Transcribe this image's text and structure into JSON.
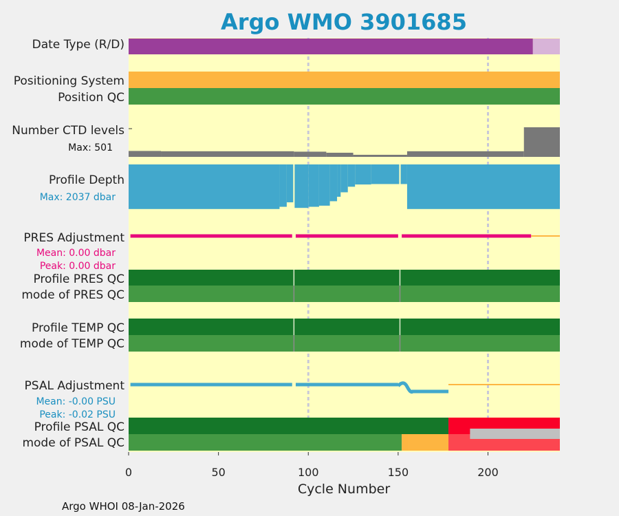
{
  "chart_data": {
    "type": "bar",
    "title": "Argo WMO 3901685",
    "xlabel": "Cycle Number",
    "xlim": [
      0,
      240
    ],
    "xticks": [
      0,
      50,
      100,
      150,
      200
    ],
    "grid_x": [
      100,
      200
    ],
    "footer": "Argo WHOI 08-Jan-2026",
    "colors": {
      "background": "#ffffc0",
      "grid": "#c8c8d8",
      "magenta": "#9a3e9a",
      "magenta_light": "#d8b4d8",
      "orange": "#fdb541",
      "green_light": "#449944",
      "green_dark": "#157729",
      "gray": "#787878",
      "blue": "#42a8cc",
      "pink": "#e8097c",
      "red": "#fa0028",
      "red_light": "#fc4650",
      "silver": "#c0c0c0"
    },
    "rows": {
      "date_type": {
        "label": "Date Type (R/D)",
        "segments": [
          {
            "from": 0,
            "to": 225,
            "value": "R",
            "color": "#9a3e9a"
          },
          {
            "from": 225,
            "to": 240,
            "value": "D",
            "color": "#d8b4d8"
          }
        ]
      },
      "positioning_system": {
        "label": "Positioning System",
        "segments": [
          {
            "from": 0,
            "to": 240,
            "color": "#fdb541"
          }
        ]
      },
      "position_qc": {
        "label": "Position QC",
        "segments": [
          {
            "from": 0,
            "to": 240,
            "color": "#449944"
          }
        ]
      },
      "ctd_levels": {
        "label": "Number CTD levels",
        "max_label": "Max: 501",
        "max": 501,
        "series": [
          {
            "from": 0,
            "to": 18,
            "value": 100
          },
          {
            "from": 18,
            "to": 92,
            "value": 95
          },
          {
            "from": 92,
            "to": 110,
            "value": 88
          },
          {
            "from": 110,
            "to": 125,
            "value": 70
          },
          {
            "from": 125,
            "to": 155,
            "value": 35
          },
          {
            "from": 155,
            "to": 220,
            "value": 95
          },
          {
            "from": 220,
            "to": 240,
            "value": 501
          }
        ]
      },
      "profile_depth": {
        "label": "Profile Depth",
        "max_label": "Max: 2037 dbar",
        "max": 2037,
        "series": [
          {
            "from": 0,
            "to": 84,
            "value": 2000
          },
          {
            "from": 84,
            "to": 88,
            "value": 1900
          },
          {
            "from": 88,
            "to": 92,
            "value": 1700
          },
          {
            "from": 92,
            "to": 100,
            "value": 1950
          },
          {
            "from": 100,
            "to": 106,
            "value": 1900
          },
          {
            "from": 106,
            "to": 112,
            "value": 1850
          },
          {
            "from": 112,
            "to": 116,
            "value": 1650
          },
          {
            "from": 116,
            "to": 118,
            "value": 1450
          },
          {
            "from": 118,
            "to": 122,
            "value": 1250
          },
          {
            "from": 122,
            "to": 126,
            "value": 1000
          },
          {
            "from": 126,
            "to": 135,
            "value": 900
          },
          {
            "from": 135,
            "to": 155,
            "value": 880
          },
          {
            "from": 155,
            "to": 240,
            "value": 2000
          }
        ],
        "gaps": [
          92,
          151
        ]
      },
      "pres_adjustment": {
        "label": "PRES Adjustment",
        "mean_label": "Mean: 0.00 dbar",
        "peak_label": "Peak: 0.00 dbar",
        "mean": 0.0,
        "peak": 0.0
      },
      "profile_pres_qc": {
        "label": "Profile PRES QC"
      },
      "mode_pres_qc": {
        "label": "mode of PRES QC"
      },
      "profile_temp_qc": {
        "label": "Profile TEMP QC"
      },
      "mode_temp_qc": {
        "label": "mode of TEMP QC"
      },
      "psal_adjustment": {
        "label": "PSAL Adjustment",
        "mean_label": "Mean: -0.00 PSU",
        "peak_label": "Peak: -0.02 PSU",
        "mean": -0.0,
        "peak": -0.02
      },
      "profile_psal_qc": {
        "label": "Profile PSAL QC",
        "segments": [
          {
            "from": 0,
            "to": 178,
            "color": "#157729"
          },
          {
            "from": 178,
            "to": 240,
            "color": "#fa0028"
          }
        ]
      },
      "mode_psal_qc": {
        "label": "mode of PSAL QC",
        "segments": [
          {
            "from": 0,
            "to": 152,
            "color": "#449944"
          },
          {
            "from": 152,
            "to": 156,
            "color": "#fdb541"
          },
          {
            "from": 156,
            "to": 178,
            "color": "#fdb541"
          },
          {
            "from": 178,
            "to": 240,
            "color": "#fc4650"
          }
        ]
      }
    }
  }
}
